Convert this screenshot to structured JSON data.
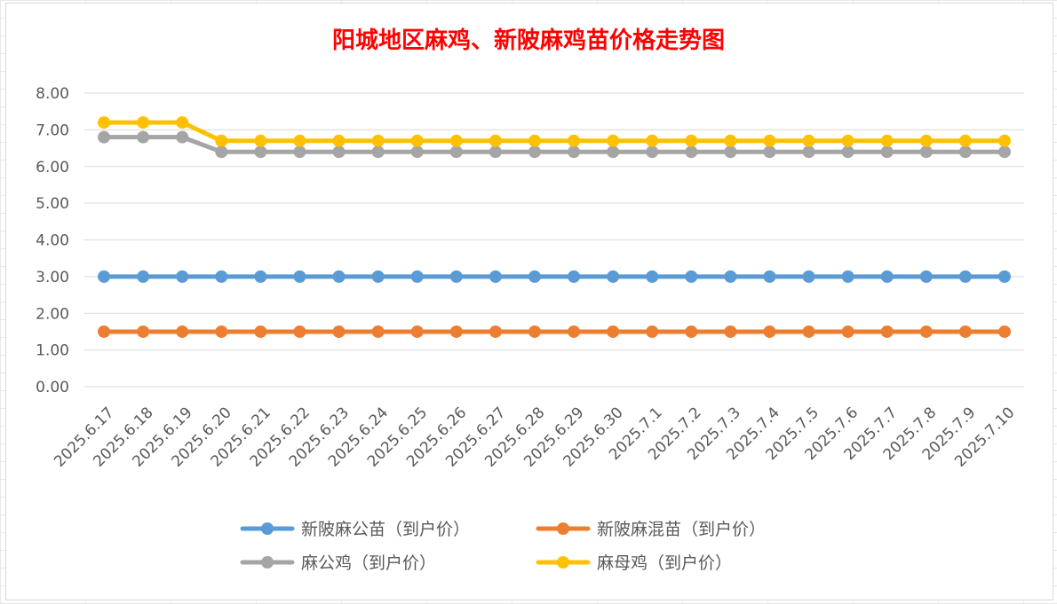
{
  "chart_data": {
    "type": "line",
    "title": "阳城地区麻鸡、新陂麻鸡苗价格走势图",
    "xlabel": "",
    "ylabel": "",
    "ylim": [
      0,
      8
    ],
    "yticks": [
      "0.00",
      "1.00",
      "2.00",
      "3.00",
      "4.00",
      "5.00",
      "6.00",
      "7.00",
      "8.00"
    ],
    "grid": true,
    "legend_position": "bottom",
    "categories": [
      "2025.6.17",
      "2025.6.18",
      "2025.6.19",
      "2025.6.20",
      "2025.6.21",
      "2025.6.22",
      "2025.6.23",
      "2025.6.24",
      "2025.6.25",
      "2025.6.26",
      "2025.6.27",
      "2025.6.28",
      "2025.6.29",
      "2025.6.30",
      "2025.7.1",
      "2025.7.2",
      "2025.7.3",
      "2025.7.4",
      "2025.7.5",
      "2025.7.6",
      "2025.7.7",
      "2025.7.8",
      "2025.7.9",
      "2025.7.10"
    ],
    "series": [
      {
        "name": "新陂麻公苗（到户价）",
        "color": "#5b9bd5",
        "values": [
          3.0,
          3.0,
          3.0,
          3.0,
          3.0,
          3.0,
          3.0,
          3.0,
          3.0,
          3.0,
          3.0,
          3.0,
          3.0,
          3.0,
          3.0,
          3.0,
          3.0,
          3.0,
          3.0,
          3.0,
          3.0,
          3.0,
          3.0,
          3.0
        ]
      },
      {
        "name": "新陂麻混苗（到户价）",
        "color": "#ed7d31",
        "values": [
          1.5,
          1.5,
          1.5,
          1.5,
          1.5,
          1.5,
          1.5,
          1.5,
          1.5,
          1.5,
          1.5,
          1.5,
          1.5,
          1.5,
          1.5,
          1.5,
          1.5,
          1.5,
          1.5,
          1.5,
          1.5,
          1.5,
          1.5,
          1.5
        ]
      },
      {
        "name": "麻公鸡（到户价）",
        "color": "#a5a5a5",
        "values": [
          6.8,
          6.8,
          6.8,
          6.4,
          6.4,
          6.4,
          6.4,
          6.4,
          6.4,
          6.4,
          6.4,
          6.4,
          6.4,
          6.4,
          6.4,
          6.4,
          6.4,
          6.4,
          6.4,
          6.4,
          6.4,
          6.4,
          6.4,
          6.4
        ]
      },
      {
        "name": "麻母鸡（到户价）",
        "color": "#ffc000",
        "values": [
          7.2,
          7.2,
          7.2,
          6.7,
          6.7,
          6.7,
          6.7,
          6.7,
          6.7,
          6.7,
          6.7,
          6.7,
          6.7,
          6.7,
          6.7,
          6.7,
          6.7,
          6.7,
          6.7,
          6.7,
          6.7,
          6.7,
          6.7,
          6.7
        ]
      }
    ]
  }
}
